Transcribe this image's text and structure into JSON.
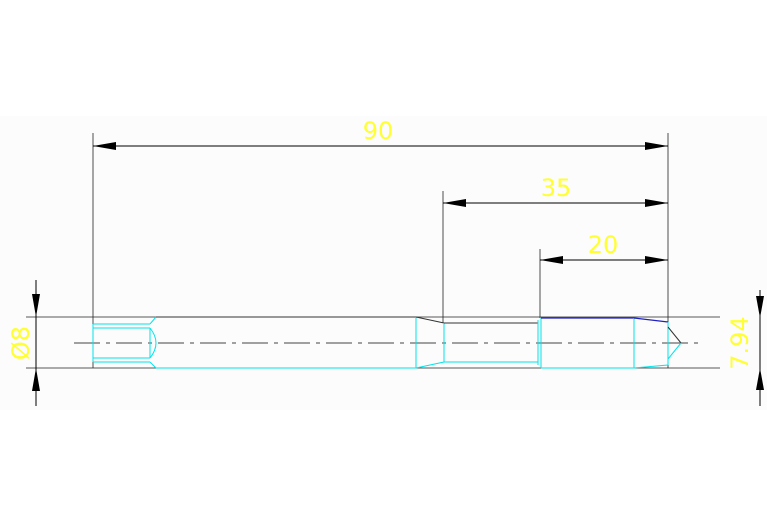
{
  "drawing": {
    "dimensions": {
      "overall_length": "90",
      "neck_to_end": "35",
      "thread_length": "20",
      "shank_diameter": "Ø8",
      "thread_diameter": "7.94"
    },
    "colors": {
      "background": "#fbfcfb",
      "dimension_text": "#ffff33",
      "outline": "#00e5ee",
      "dimension_lines": "#000000"
    }
  }
}
